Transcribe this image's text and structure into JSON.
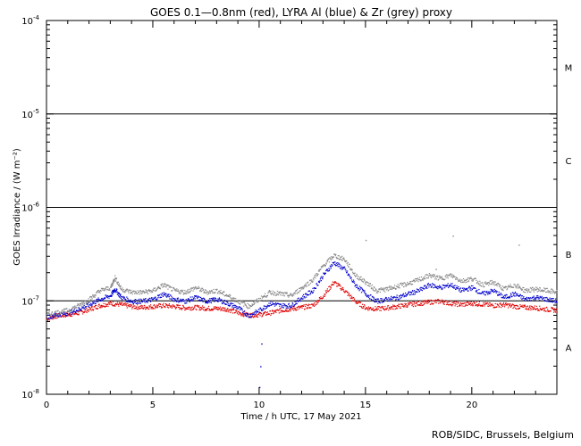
{
  "chart_data": {
    "type": "scatter",
    "title": "GOES 0.1—0.8nm (red), LYRA Al (blue) & Zr (grey) proxy",
    "xlabel": "Time / h UTC, 17 May 2021",
    "ylabel": "GOES Irradiance / (W m⁻²)",
    "xlim": [
      0,
      24
    ],
    "ylim": [
      1e-08,
      0.0001
    ],
    "y_scale": "log",
    "x_ticks": [
      0,
      5,
      10,
      15,
      20
    ],
    "y_tick_labels": [
      {
        "value": 0.0001,
        "base": "10",
        "exp": "-4"
      },
      {
        "value": 1e-05,
        "base": "10",
        "exp": "-5"
      },
      {
        "value": 1e-06,
        "base": "10",
        "exp": "-6"
      },
      {
        "value": 1e-07,
        "base": "10",
        "exp": "-7"
      },
      {
        "value": 1e-08,
        "base": "10",
        "exp": "-8"
      }
    ],
    "reference_lines": [
      1e-05,
      1e-06,
      1e-07
    ],
    "flare_classes": [
      {
        "label": "M",
        "value": 3.16e-05
      },
      {
        "label": "C",
        "value": 3.16e-06
      },
      {
        "label": "B",
        "value": 3.16e-07
      },
      {
        "label": "A",
        "value": 3.16e-08
      }
    ],
    "series": [
      {
        "name": "GOES 0.1—0.8nm",
        "color": "#e00000",
        "x": [
          0,
          0.5,
          1,
          1.5,
          2,
          2.5,
          3,
          3.5,
          4,
          4.5,
          5,
          5.5,
          6,
          6.5,
          7,
          7.5,
          8,
          8.5,
          9,
          9.5,
          10,
          10.5,
          11,
          11.5,
          12,
          12.5,
          13,
          13.5,
          14,
          14.5,
          15,
          15.5,
          16,
          16.5,
          17,
          17.5,
          18,
          18.5,
          19,
          19.5,
          20,
          20.5,
          21,
          21.5,
          22,
          22.5,
          23,
          23.5,
          24
        ],
        "y": [
          6.5e-08,
          7e-08,
          7.2e-08,
          7.5e-08,
          8.2e-08,
          9e-08,
          9.5e-08,
          9.2e-08,
          8.8e-08,
          8.6e-08,
          8.8e-08,
          9e-08,
          8.8e-08,
          8.5e-08,
          8.6e-08,
          8.4e-08,
          8.4e-08,
          8.2e-08,
          7.5e-08,
          7.1e-08,
          7.2e-08,
          7.5e-08,
          8e-08,
          8.3e-08,
          8.6e-08,
          9e-08,
          1.15e-07,
          1.6e-07,
          1.3e-07,
          1e-07,
          8.5e-08,
          8.3e-08,
          8.5e-08,
          8.8e-08,
          9.2e-08,
          9.5e-08,
          9.8e-08,
          1e-07,
          9.5e-08,
          9.2e-08,
          9.5e-08,
          9.3e-08,
          9e-08,
          9.2e-08,
          8.8e-08,
          8.6e-08,
          8.5e-08,
          8.2e-08,
          8e-08
        ]
      },
      {
        "name": "LYRA Al proxy",
        "color": "#0000cc",
        "x": [
          0,
          0.5,
          1,
          1.5,
          2,
          2.5,
          3,
          3.2,
          3.5,
          4,
          4.5,
          5,
          5.5,
          6,
          6.5,
          7,
          7.5,
          8,
          8.5,
          9,
          9.5,
          10,
          10.5,
          11,
          11.5,
          12,
          12.5,
          13,
          13.5,
          14,
          14.5,
          15,
          15.5,
          16,
          16.5,
          17,
          17.5,
          18,
          18.5,
          19,
          19.5,
          20,
          20.5,
          21,
          21.5,
          22,
          22.5,
          23,
          23.5,
          24
        ],
        "y": [
          6.8e-08,
          7.2e-08,
          7.5e-08,
          8.2e-08,
          9.2e-08,
          1.05e-07,
          1.15e-07,
          1.35e-07,
          1.1e-07,
          1e-07,
          1e-07,
          1.05e-07,
          1.2e-07,
          1.05e-07,
          1e-07,
          1.1e-07,
          1e-07,
          1.05e-07,
          9.5e-08,
          8.5e-08,
          7e-08,
          8e-08,
          9.5e-08,
          9e-08,
          9e-08,
          1.1e-07,
          1.3e-07,
          1.9e-07,
          2.6e-07,
          2.2e-07,
          1.5e-07,
          1.2e-07,
          1e-07,
          1.05e-07,
          1.1e-07,
          1.2e-07,
          1.3e-07,
          1.5e-07,
          1.4e-07,
          1.5e-07,
          1.3e-07,
          1.4e-07,
          1.2e-07,
          1.3e-07,
          1.1e-07,
          1.2e-07,
          1.05e-07,
          1.1e-07,
          1.05e-07,
          1e-07
        ]
      },
      {
        "name": "LYRA Zr proxy",
        "color": "#888888",
        "x": [
          0,
          0.5,
          1,
          1.5,
          2,
          2.5,
          3,
          3.2,
          3.5,
          4,
          4.5,
          5,
          5.5,
          6,
          6.5,
          7,
          7.5,
          8,
          8.5,
          9,
          9.5,
          10,
          10.5,
          11,
          11.5,
          12,
          12.5,
          13,
          13.5,
          14,
          14.5,
          15,
          15.5,
          16,
          16.5,
          17,
          17.5,
          18,
          18.5,
          19,
          19.5,
          20,
          20.5,
          21,
          21.5,
          22,
          22.5,
          23,
          23.5,
          24
        ],
        "y": [
          7.2e-08,
          7.6e-08,
          8e-08,
          9e-08,
          1.05e-07,
          1.3e-07,
          1.4e-07,
          1.8e-07,
          1.35e-07,
          1.25e-07,
          1.25e-07,
          1.3e-07,
          1.5e-07,
          1.3e-07,
          1.25e-07,
          1.4e-07,
          1.25e-07,
          1.3e-07,
          1.15e-07,
          1e-07,
          8.8e-08,
          1.05e-07,
          1.25e-07,
          1.2e-07,
          1.15e-07,
          1.4e-07,
          1.7e-07,
          2.4e-07,
          3.1e-07,
          2.8e-07,
          1.9e-07,
          1.6e-07,
          1.3e-07,
          1.35e-07,
          1.45e-07,
          1.55e-07,
          1.7e-07,
          1.9e-07,
          1.75e-07,
          1.9e-07,
          1.65e-07,
          1.75e-07,
          1.5e-07,
          1.6e-07,
          1.35e-07,
          1.5e-07,
          1.3e-07,
          1.35e-07,
          1.3e-07,
          1.25e-07
        ]
      }
    ],
    "spikes": [
      {
        "x": 10.0,
        "y": 1.2e-08,
        "color": "#0000cc"
      },
      {
        "x": 10.05,
        "y": 2e-08,
        "color": "#0000cc"
      },
      {
        "x": 10.1,
        "y": 3.5e-08,
        "color": "#0000cc"
      },
      {
        "x": 15.0,
        "y": 4.5e-07,
        "color": "#888888"
      },
      {
        "x": 19.1,
        "y": 5e-07,
        "color": "#888888"
      },
      {
        "x": 22.2,
        "y": 4e-07,
        "color": "#888888"
      },
      {
        "x": 18.3,
        "y": 2.2e-07,
        "color": "#888888"
      }
    ]
  },
  "credit": "ROB/SIDC, Brussels, Belgium"
}
